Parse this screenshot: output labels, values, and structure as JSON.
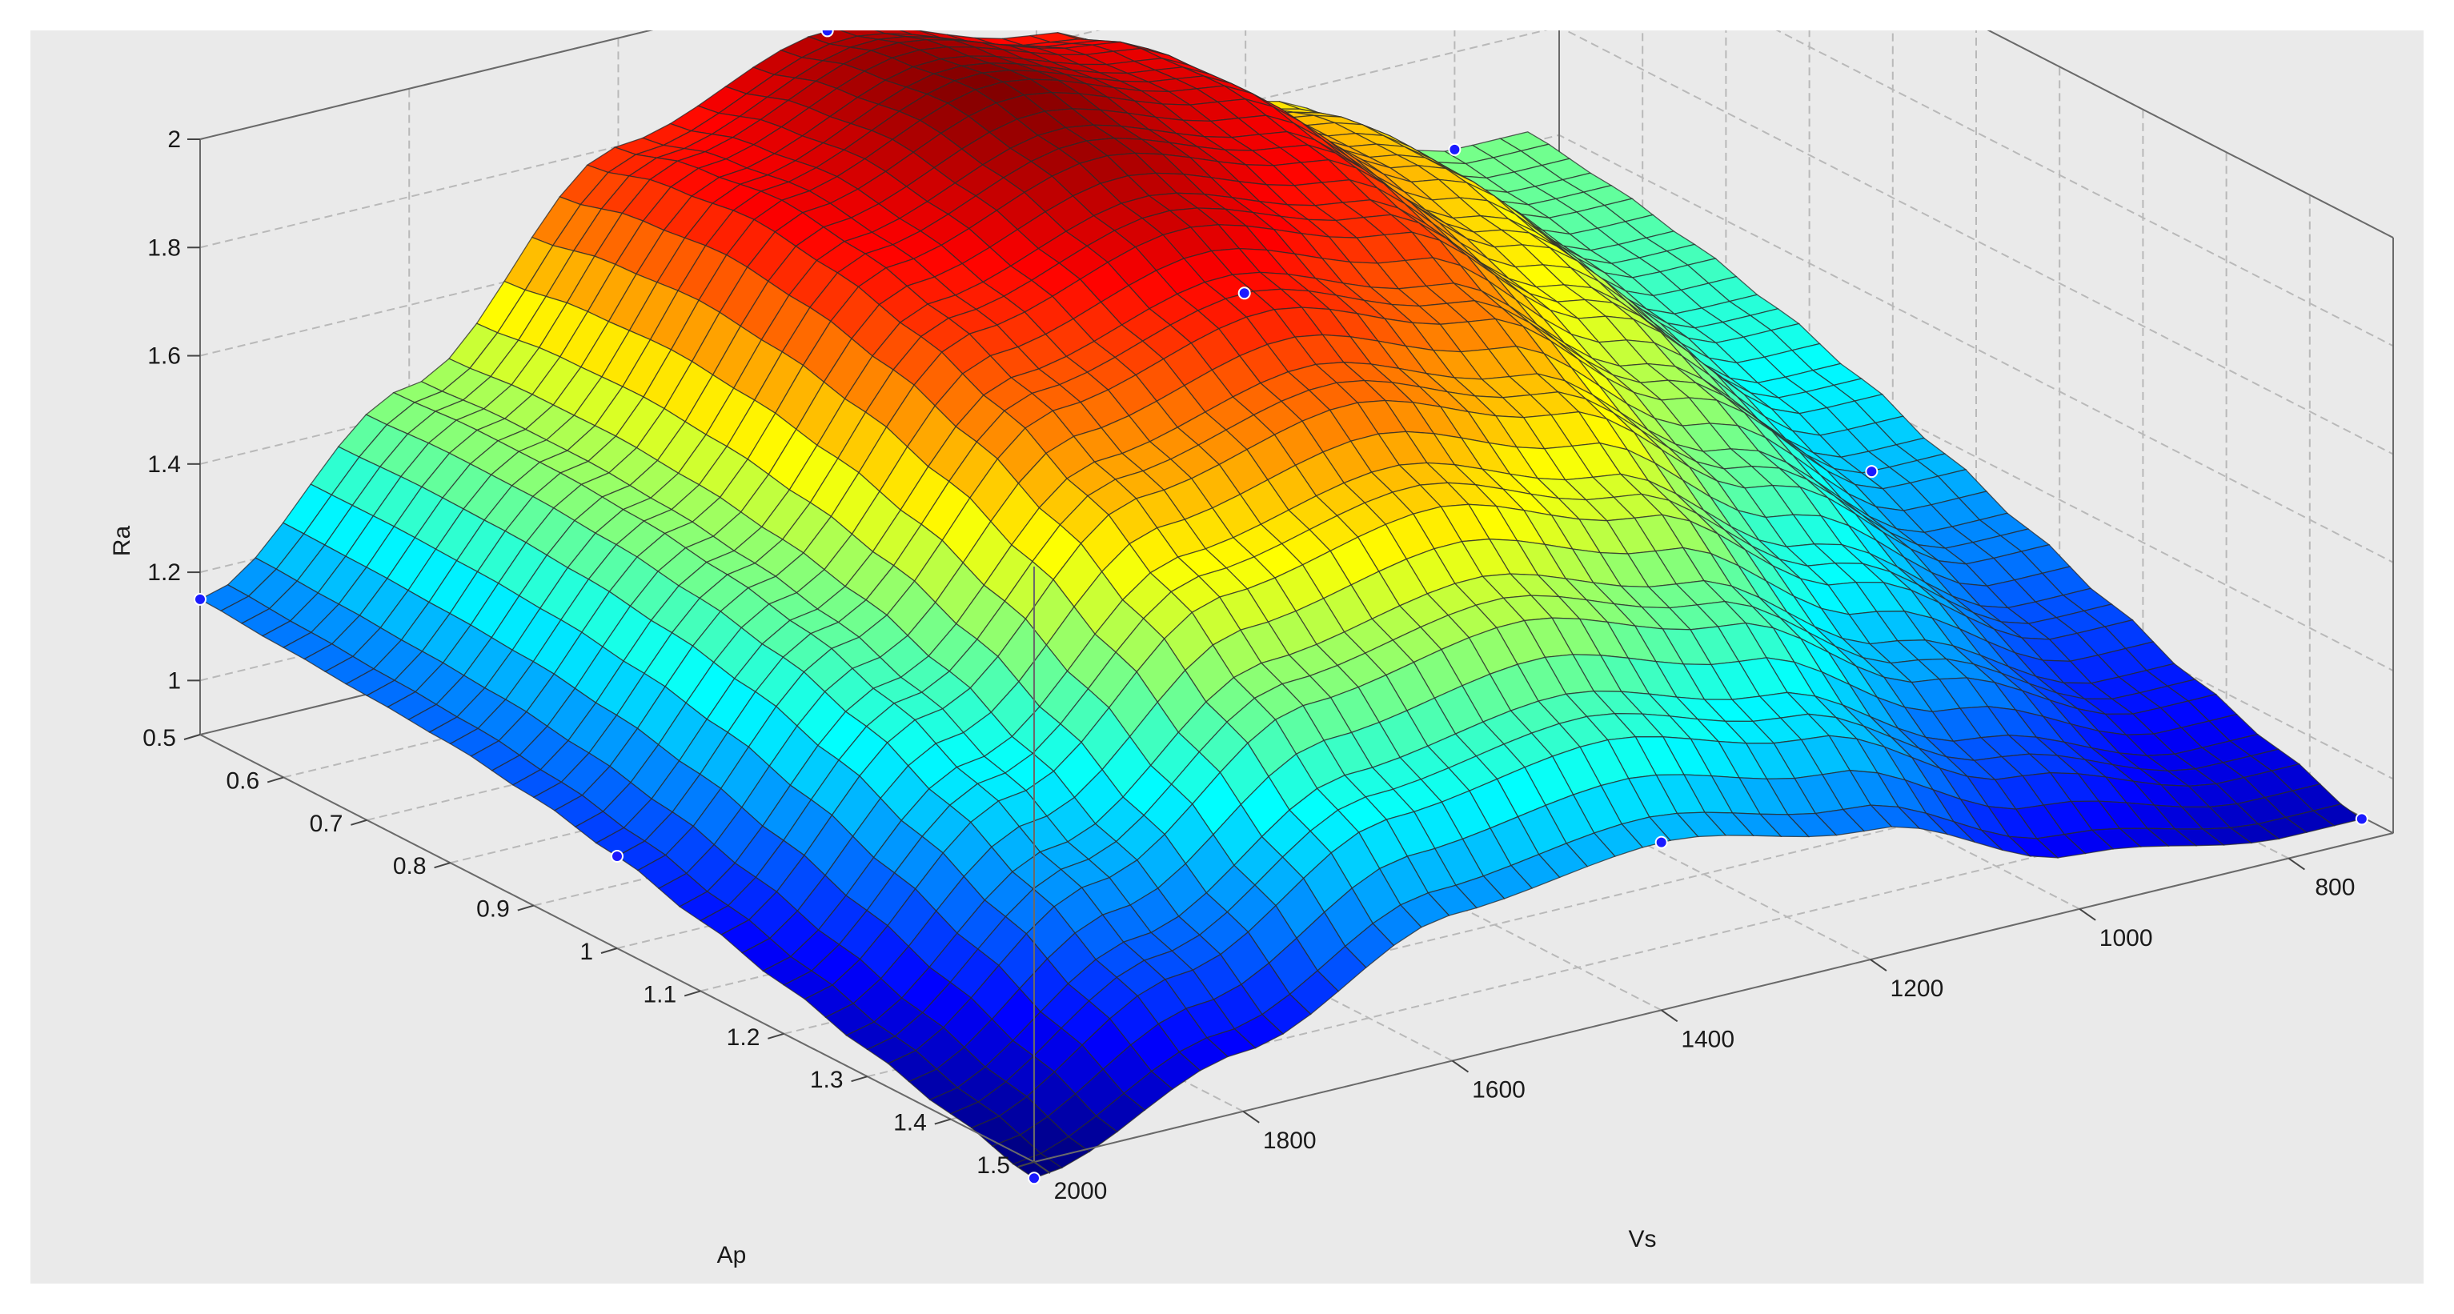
{
  "chart_data": {
    "type": "surface",
    "title": "",
    "xlabel": "Vs",
    "ylabel": "Ap",
    "zlabel": "Ra",
    "x_ticks": [
      800,
      1000,
      1200,
      1400,
      1600,
      1800,
      2000
    ],
    "y_ticks": [
      0.5,
      0.6,
      0.7,
      0.8,
      0.9,
      1,
      1.1,
      1.2,
      1.3,
      1.4,
      1.5
    ],
    "z_ticks": [
      1,
      1.2,
      1.4,
      1.6,
      1.8,
      2
    ],
    "x_range": [
      700,
      2000
    ],
    "y_range": [
      0.5,
      1.5
    ],
    "z_range": [
      0.9,
      2.0
    ],
    "grid": true,
    "colormap": "jet",
    "grid_x": [
      2000,
      1800,
      1600,
      1400,
      1200,
      1000,
      800
    ],
    "grid_y": [
      0.5,
      0.6,
      0.7,
      0.8,
      0.9,
      1.0,
      1.1,
      1.2,
      1.3,
      1.4,
      1.5
    ],
    "z_values": [
      [
        1.15,
        1.45,
        1.8,
        1.92,
        1.82,
        1.6,
        1.42
      ],
      [
        1.14,
        1.46,
        1.84,
        1.96,
        1.87,
        1.64,
        1.4
      ],
      [
        1.13,
        1.46,
        1.86,
        1.98,
        1.88,
        1.64,
        1.37
      ],
      [
        1.12,
        1.45,
        1.84,
        1.95,
        1.85,
        1.6,
        1.33
      ],
      [
        1.1,
        1.43,
        1.8,
        1.9,
        1.8,
        1.55,
        1.28
      ],
      [
        1.07,
        1.4,
        1.74,
        1.83,
        1.72,
        1.48,
        1.22
      ],
      [
        1.03,
        1.35,
        1.66,
        1.74,
        1.63,
        1.4,
        1.16
      ],
      [
        0.99,
        1.28,
        1.56,
        1.63,
        1.52,
        1.3,
        1.1
      ],
      [
        0.95,
        1.2,
        1.44,
        1.5,
        1.4,
        1.2,
        1.04
      ],
      [
        0.91,
        1.11,
        1.31,
        1.36,
        1.27,
        1.1,
        0.99
      ],
      [
        0.87,
        1.01,
        1.17,
        1.21,
        1.14,
        1.0,
        0.94
      ]
    ],
    "marker_color": "#1a1aff"
  }
}
